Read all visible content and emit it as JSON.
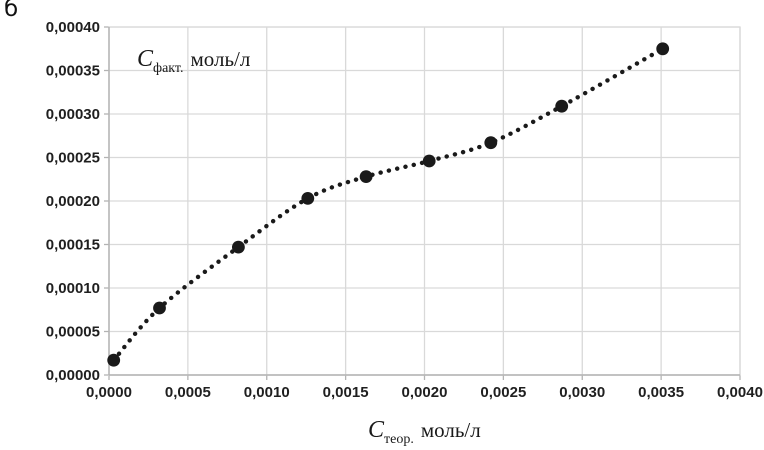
{
  "panel_label": "б",
  "chart_data": {
    "type": "scatter",
    "title": "",
    "legend_position": "none",
    "grid": true,
    "x": [
      3e-05,
      0.00032,
      0.00082,
      0.00126,
      0.00163,
      0.00203,
      0.00242,
      0.00287,
      0.00351
    ],
    "y": [
      1.7e-05,
      7.7e-05,
      0.000147,
      0.000203,
      0.000228,
      0.000246,
      0.000267,
      0.000309,
      0.000375
    ],
    "trendline": {
      "style": "dotted",
      "smooth": true
    },
    "x_axis": {
      "min": 0,
      "max": 0.004,
      "step": 0.0005,
      "tick_labels": [
        "0,0000",
        "0,0005",
        "0,0010",
        "0,0015",
        "0,0020",
        "0,0025",
        "0,0030",
        "0,0035",
        "0,0040"
      ],
      "title": {
        "symbol": "C",
        "subscript": "теор.",
        "unit": "моль/л"
      }
    },
    "y_axis": {
      "min": 0,
      "max": 0.0004,
      "step": 5e-05,
      "tick_labels": [
        "0,00000",
        "0,00005",
        "0,00010",
        "0,00015",
        "0,00020",
        "0,00025",
        "0,00030",
        "0,00035",
        "0,00040"
      ],
      "title": {
        "symbol": "C",
        "subscript": "факт.",
        "unit": "моль/л"
      }
    },
    "colors": {
      "marker": "#1a1a1a",
      "trend": "#1a1a1a",
      "grid": "#d9d9d9",
      "axis": "#b3b3b3",
      "tick_text": "#1f1f1f",
      "title_text": "#1a1a1a",
      "background": "#ffffff"
    }
  }
}
